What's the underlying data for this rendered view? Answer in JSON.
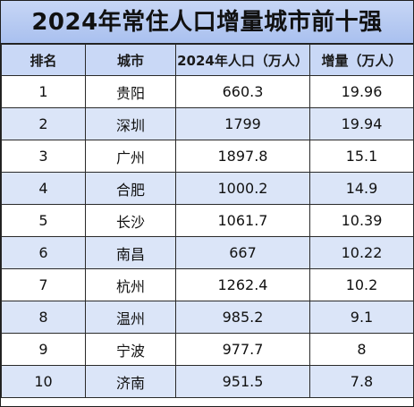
{
  "chart_data": {
    "type": "table",
    "title": "2024年常住人口增量城市前十强",
    "columns": [
      "排名",
      "城市",
      "2024年人口（万人）",
      "增量（万人）"
    ],
    "rows": [
      {
        "rank": "1",
        "city": "贵阳",
        "population": "660.3",
        "increase": "19.96"
      },
      {
        "rank": "2",
        "city": "深圳",
        "population": "1799",
        "increase": "19.94"
      },
      {
        "rank": "3",
        "city": "广州",
        "population": "1897.8",
        "increase": "15.1"
      },
      {
        "rank": "4",
        "city": "合肥",
        "population": "1000.2",
        "increase": "14.9"
      },
      {
        "rank": "5",
        "city": "长沙",
        "population": "1061.7",
        "increase": "10.39"
      },
      {
        "rank": "6",
        "city": "南昌",
        "population": "667",
        "increase": "10.22"
      },
      {
        "rank": "7",
        "city": "杭州",
        "population": "1262.4",
        "increase": "10.2"
      },
      {
        "rank": "8",
        "city": "温州",
        "population": "985.2",
        "increase": "9.1"
      },
      {
        "rank": "9",
        "city": "宁波",
        "population": "977.7",
        "increase": "8"
      },
      {
        "rank": "10",
        "city": "济南",
        "population": "951.5",
        "increase": "7.8"
      }
    ]
  },
  "colors": {
    "header_bg": "#c9d8f6",
    "title_bg": "#b2c7f0",
    "stripe_bg": "#dbe5f8",
    "border": "#2a2a2a"
  }
}
